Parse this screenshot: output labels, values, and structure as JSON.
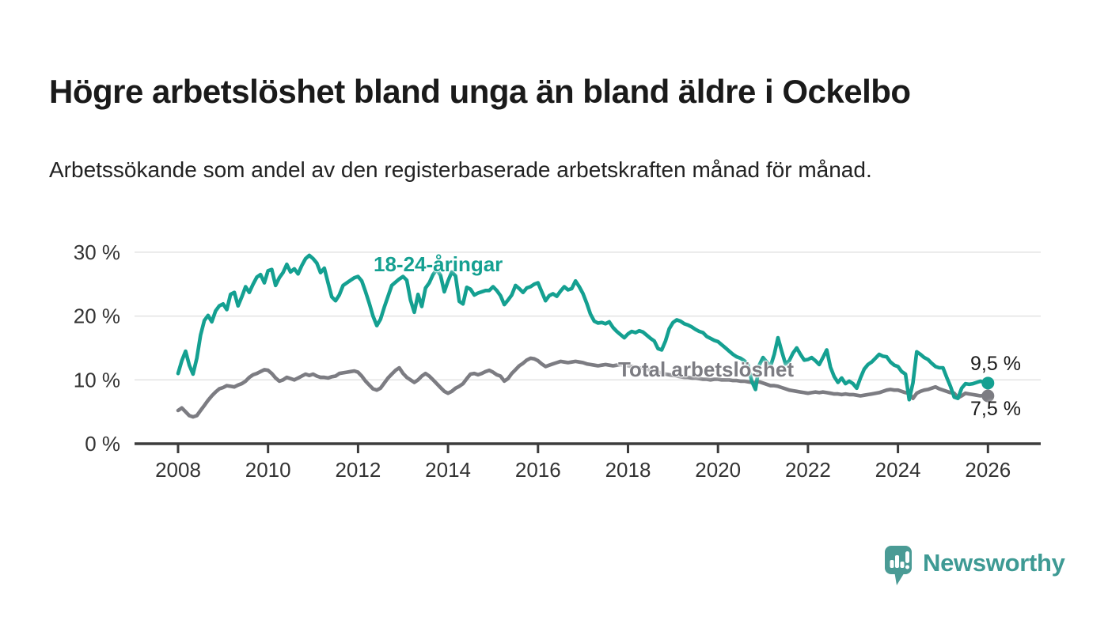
{
  "header": {
    "title": "Högre arbetslöshet bland unga än bland äldre i Ockelbo",
    "subtitle": "Arbetssökande som andel av den registerbaserade arbetskraften månad för månad."
  },
  "chart_data": {
    "type": "line",
    "title": "Högre arbetslöshet bland unga än bland äldre i Ockelbo",
    "subtitle": "Arbetssökande som andel av den registerbaserade arbetskraften månad för månad.",
    "x_unit": "monthly from January 2008 to January 2026",
    "x_start_year": 2008,
    "months_per_point": 1,
    "xlim": [
      2007,
      2027.2
    ],
    "ylim": [
      0,
      32
    ],
    "grid": "horizontal",
    "xticks": [
      {
        "value": 2008,
        "label": "2008"
      },
      {
        "value": 2010,
        "label": "2010"
      },
      {
        "value": 2012,
        "label": "2012"
      },
      {
        "value": 2014,
        "label": "2014"
      },
      {
        "value": 2016,
        "label": "2016"
      },
      {
        "value": 2018,
        "label": "2018"
      },
      {
        "value": 2020,
        "label": "2020"
      },
      {
        "value": 2022,
        "label": "2022"
      },
      {
        "value": 2024,
        "label": "2024"
      },
      {
        "value": 2026,
        "label": "2026"
      }
    ],
    "yticks": [
      {
        "value": 0,
        "label": "0 %"
      },
      {
        "value": 10,
        "label": "10 %"
      },
      {
        "value": 20,
        "label": "20 %"
      },
      {
        "value": 30,
        "label": "30 %"
      }
    ],
    "series": [
      {
        "name": "18-24-åringar",
        "color": "#14A091",
        "end_label": "9,5 %",
        "end_value": 9.5,
        "values": [
          11.0,
          13.0,
          14.5,
          12.3,
          10.9,
          13.4,
          17.0,
          19.3,
          20.1,
          19.1,
          20.8,
          21.6,
          21.9,
          21.0,
          23.4,
          23.7,
          21.6,
          23.0,
          24.6,
          23.7,
          25.0,
          26.1,
          26.5,
          25.2,
          27.1,
          27.3,
          24.8,
          26.0,
          26.8,
          28.1,
          26.9,
          27.4,
          26.6,
          27.9,
          29.0,
          29.5,
          29.0,
          28.3,
          26.8,
          27.5,
          25.2,
          23.0,
          22.4,
          23.3,
          24.8,
          25.2,
          25.6,
          26.0,
          26.2,
          25.5,
          23.8,
          22.0,
          20.0,
          18.5,
          19.5,
          21.4,
          23.1,
          24.8,
          25.3,
          25.8,
          26.2,
          25.6,
          22.5,
          20.6,
          23.4,
          21.5,
          24.4,
          25.2,
          26.5,
          27.3,
          26.4,
          23.8,
          25.5,
          26.9,
          26.3,
          22.3,
          21.9,
          24.5,
          24.2,
          23.3,
          23.6,
          23.8,
          24.0,
          24.0,
          24.6,
          24.0,
          23.2,
          21.8,
          22.5,
          23.3,
          24.8,
          24.3,
          23.7,
          24.4,
          24.6,
          25.0,
          25.2,
          23.8,
          22.4,
          23.2,
          23.5,
          23.1,
          23.9,
          24.6,
          24.1,
          24.3,
          25.5,
          24.6,
          23.5,
          22.0,
          20.3,
          19.2,
          18.9,
          19.0,
          18.8,
          19.1,
          18.2,
          17.6,
          17.1,
          16.6,
          17.2,
          17.6,
          17.4,
          17.7,
          17.5,
          17.0,
          16.5,
          16.1,
          14.9,
          14.7,
          16.1,
          18.0,
          19.0,
          19.4,
          19.2,
          18.8,
          18.6,
          18.3,
          17.9,
          17.6,
          17.4,
          16.8,
          16.5,
          16.2,
          16.0,
          15.5,
          15.0,
          14.5,
          14.0,
          13.6,
          13.4,
          13.0,
          12.4,
          9.8,
          8.5,
          12.3,
          13.5,
          12.8,
          12.1,
          14.0,
          16.6,
          14.5,
          12.5,
          13.0,
          14.2,
          15.0,
          14.0,
          13.1,
          13.2,
          13.5,
          13.0,
          12.4,
          13.5,
          14.7,
          12.0,
          10.5,
          9.6,
          10.3,
          9.4,
          9.8,
          9.4,
          8.7,
          10.3,
          11.7,
          12.4,
          12.8,
          13.4,
          14.0,
          13.7,
          13.6,
          12.8,
          12.3,
          12.1,
          11.3,
          10.9,
          6.9,
          9.5,
          14.4,
          14.0,
          13.5,
          13.2,
          12.6,
          12.1,
          11.9,
          11.9,
          10.4,
          9.0,
          7.3,
          7.1,
          8.7,
          9.4,
          9.3,
          9.4,
          9.6,
          9.8,
          9.6,
          9.5
        ]
      },
      {
        "name": "Total arbetslöshet",
        "color": "#7C7C82",
        "end_label": "7,5 %",
        "end_value": 7.5,
        "values": [
          5.2,
          5.6,
          5.0,
          4.4,
          4.2,
          4.4,
          5.2,
          6.0,
          6.8,
          7.5,
          8.1,
          8.6,
          8.8,
          9.1,
          9.0,
          8.9,
          9.2,
          9.4,
          9.8,
          10.4,
          10.8,
          11.0,
          11.3,
          11.6,
          11.5,
          11.0,
          10.3,
          9.8,
          10.0,
          10.4,
          10.2,
          10.0,
          10.3,
          10.6,
          10.9,
          10.7,
          10.9,
          10.6,
          10.4,
          10.4,
          10.3,
          10.5,
          10.6,
          11.0,
          11.1,
          11.2,
          11.3,
          11.4,
          11.2,
          10.6,
          9.8,
          9.2,
          8.6,
          8.4,
          8.7,
          9.5,
          10.3,
          10.9,
          11.5,
          11.9,
          11.0,
          10.4,
          10.0,
          9.6,
          10.0,
          10.6,
          11.0,
          10.6,
          10.0,
          9.4,
          8.8,
          8.2,
          7.9,
          8.2,
          8.7,
          9.0,
          9.4,
          10.2,
          10.9,
          11.0,
          10.8,
          11.0,
          11.3,
          11.5,
          11.2,
          10.8,
          10.6,
          9.8,
          10.2,
          11.0,
          11.6,
          12.2,
          12.6,
          13.1,
          13.4,
          13.3,
          13.0,
          12.5,
          12.1,
          12.3,
          12.5,
          12.7,
          12.9,
          12.8,
          12.7,
          12.8,
          12.9,
          12.8,
          12.7,
          12.5,
          12.4,
          12.3,
          12.2,
          12.3,
          12.4,
          12.3,
          12.2,
          12.3,
          12.4,
          12.3,
          12.2,
          12.1,
          12.0,
          11.9,
          11.8,
          11.7,
          11.5,
          11.4,
          11.2,
          11.1,
          10.9,
          10.8,
          10.7,
          10.6,
          10.5,
          10.4,
          10.4,
          10.3,
          10.3,
          10.2,
          10.1,
          10.1,
          10.0,
          10.1,
          10.1,
          10.0,
          10.0,
          10.0,
          9.9,
          9.9,
          9.8,
          9.8,
          9.7,
          9.6,
          9.6,
          9.7,
          9.5,
          9.3,
          9.1,
          9.1,
          9.0,
          8.8,
          8.6,
          8.4,
          8.3,
          8.2,
          8.1,
          8.0,
          7.9,
          8.0,
          8.1,
          8.0,
          8.1,
          8.0,
          7.9,
          7.8,
          7.8,
          7.7,
          7.8,
          7.7,
          7.7,
          7.6,
          7.5,
          7.6,
          7.7,
          7.8,
          7.9,
          8.0,
          8.2,
          8.4,
          8.5,
          8.4,
          8.4,
          8.2,
          8.0,
          7.9,
          7.1,
          7.9,
          8.2,
          8.4,
          8.5,
          8.7,
          8.9,
          8.6,
          8.4,
          8.2,
          8.0,
          7.9,
          7.2,
          7.5,
          7.9,
          7.8,
          7.7,
          7.6,
          7.5,
          7.6,
          7.5
        ]
      }
    ],
    "legend_position": "inline-labels-on-chart",
    "axis_color": "#3c3c3c",
    "gridline_color": "#e3e3e3",
    "tick_label_color": "#333333"
  },
  "footer": {
    "brand": "Newsworthy",
    "brand_color": "#3E9A94",
    "bubble_color": "#4A9B95"
  }
}
